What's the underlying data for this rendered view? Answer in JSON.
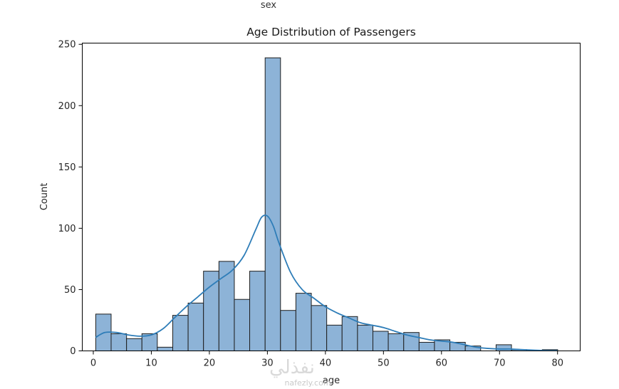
{
  "header_text": "sex",
  "watermark": {
    "arabic": "نفذلي",
    "latin": "nafezly.com"
  },
  "chart_data": {
    "type": "bar",
    "title": "Age Distribution of Passengers",
    "xlabel": "age",
    "ylabel": "Count",
    "xlim": [
      -1.9,
      83.9
    ],
    "ylim": [
      0,
      251
    ],
    "xticks": [
      0,
      10,
      20,
      30,
      40,
      50,
      60,
      70,
      80
    ],
    "yticks": [
      0,
      50,
      100,
      150,
      200,
      250
    ],
    "bin_edges": [
      0.42,
      3.07,
      5.73,
      8.38,
      11.03,
      13.69,
      16.34,
      18.99,
      21.65,
      24.3,
      26.95,
      29.61,
      32.26,
      34.91,
      37.57,
      40.22,
      42.87,
      45.53,
      48.18,
      50.83,
      53.49,
      56.14,
      58.79,
      61.45,
      64.1,
      66.75,
      69.41,
      72.06,
      74.71,
      77.37,
      80.02
    ],
    "counts": [
      30,
      14,
      10,
      14,
      3,
      29,
      39,
      65,
      73,
      42,
      65,
      239,
      33,
      47,
      37,
      21,
      28,
      21,
      16,
      14,
      15,
      7,
      9,
      7,
      4,
      0,
      5,
      1,
      0,
      1
    ],
    "kde": {
      "x": [
        0.4,
        2,
        4,
        6,
        8,
        10,
        12,
        14,
        16,
        18,
        20,
        22,
        24,
        26,
        28,
        29,
        30,
        31,
        32,
        34,
        36,
        38,
        40,
        42,
        44,
        46,
        48,
        50,
        52,
        54,
        56,
        58,
        60,
        62,
        64,
        66,
        68,
        70,
        72,
        74,
        76,
        78,
        80
      ],
      "y": [
        11,
        15,
        15,
        13,
        12,
        13,
        18,
        27,
        36,
        44,
        52,
        59,
        66,
        78,
        99,
        109,
        110,
        102,
        88,
        64,
        50,
        43,
        36,
        31,
        27,
        23,
        21,
        19,
        16,
        13,
        11,
        9,
        8,
        7,
        5,
        3,
        2,
        1.5,
        1.5,
        1,
        0.6,
        0.3,
        0.2
      ]
    },
    "colors": {
      "bar_fill": "#8db3d7",
      "bar_edge": "#1f1f1f",
      "kde_line": "#2e7db8"
    },
    "grid": false,
    "legend": "none"
  }
}
